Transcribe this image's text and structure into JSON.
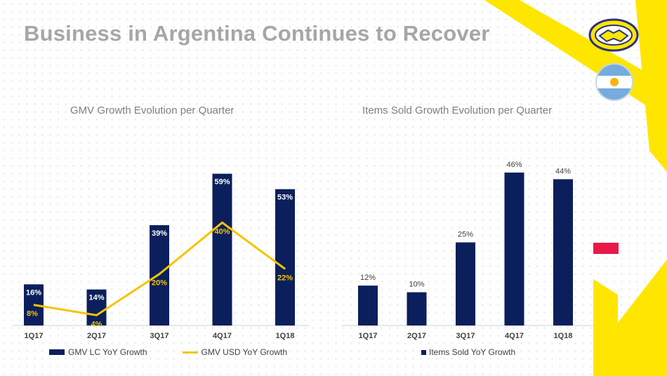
{
  "page": {
    "title": "Business in Argentina Continues to Recover"
  },
  "colors": {
    "bar": "#0b1f5c",
    "line": "#f5c400",
    "brand_yellow": "#ffe600",
    "accent_pink": "#e8194a",
    "title_gray": "#a6a6a6"
  },
  "icons": {
    "logo": "handshake-logo-icon",
    "flag": "argentina-flag-icon"
  },
  "chart_data": [
    {
      "type": "bar",
      "title": "GMV Growth Evolution per Quarter",
      "categories": [
        "1Q17",
        "2Q17",
        "3Q17",
        "4Q17",
        "1Q18"
      ],
      "series": [
        {
          "name": "GMV LC YoY Growth",
          "type": "bar",
          "values": [
            16,
            14,
            39,
            59,
            53
          ],
          "labels": [
            "16%",
            "14%",
            "39%",
            "59%",
            "53%"
          ]
        },
        {
          "name": "GMV USD YoY Growth",
          "type": "line",
          "values": [
            8,
            4,
            20,
            40,
            22
          ],
          "labels": [
            "8%",
            "4%",
            "20%",
            "40%",
            "22%"
          ]
        }
      ],
      "ylim": [
        0,
        60
      ],
      "grid": false,
      "legend": "bottom"
    },
    {
      "type": "bar",
      "title": "Items Sold Growth Evolution per Quarter",
      "categories": [
        "1Q17",
        "2Q17",
        "3Q17",
        "4Q17",
        "1Q18"
      ],
      "series": [
        {
          "name": "Items Sold YoY Growth",
          "type": "bar",
          "values": [
            12,
            10,
            25,
            46,
            44
          ],
          "labels": [
            "12%",
            "10%",
            "25%",
            "46%",
            "44%"
          ]
        }
      ],
      "ylim": [
        0,
        48
      ],
      "grid": false,
      "legend": "bottom"
    }
  ]
}
